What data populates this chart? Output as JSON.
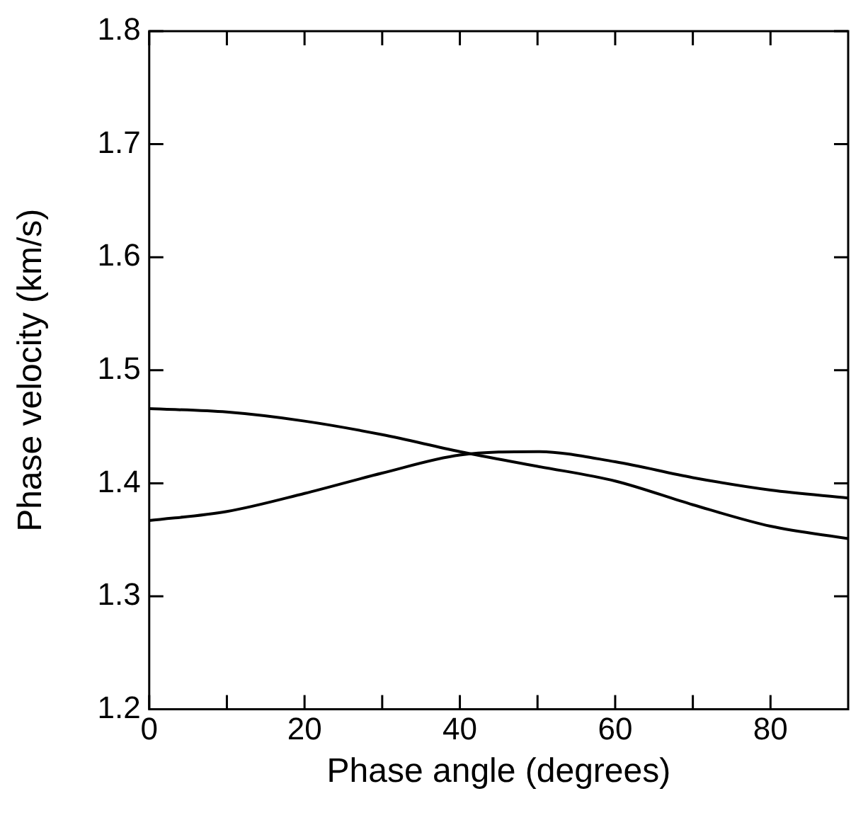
{
  "chart_data": {
    "type": "line",
    "xlabel": "Phase angle (degrees)",
    "ylabel": "Phase velocity (km/s)",
    "x": [
      0,
      10,
      20,
      30,
      40,
      50,
      60,
      70,
      80,
      90
    ],
    "series": [
      {
        "color": "#000000",
        "values": [
          1.466,
          1.463,
          1.455,
          1.443,
          1.428,
          1.415,
          1.402,
          1.381,
          1.362,
          1.351
        ]
      },
      {
        "color": "#000000",
        "values": [
          1.367,
          1.375,
          1.391,
          1.409,
          1.425,
          1.428,
          1.419,
          1.405,
          1.394,
          1.387
        ]
      }
    ],
    "xlim": [
      0,
      90
    ],
    "ylim": [
      1.2,
      1.8
    ],
    "xticks": [
      0,
      {
        "value": 10,
        "label": null
      },
      20,
      {
        "value": 30,
        "label": null
      },
      40,
      {
        "value": 50,
        "label": null
      },
      60,
      {
        "value": 70,
        "label": null
      },
      80
    ],
    "yticks": [
      1.2,
      1.3,
      1.4,
      1.5,
      1.6,
      1.7,
      1.8
    ],
    "grid": false,
    "legend": false,
    "marker": "none",
    "line_style": "solid"
  }
}
